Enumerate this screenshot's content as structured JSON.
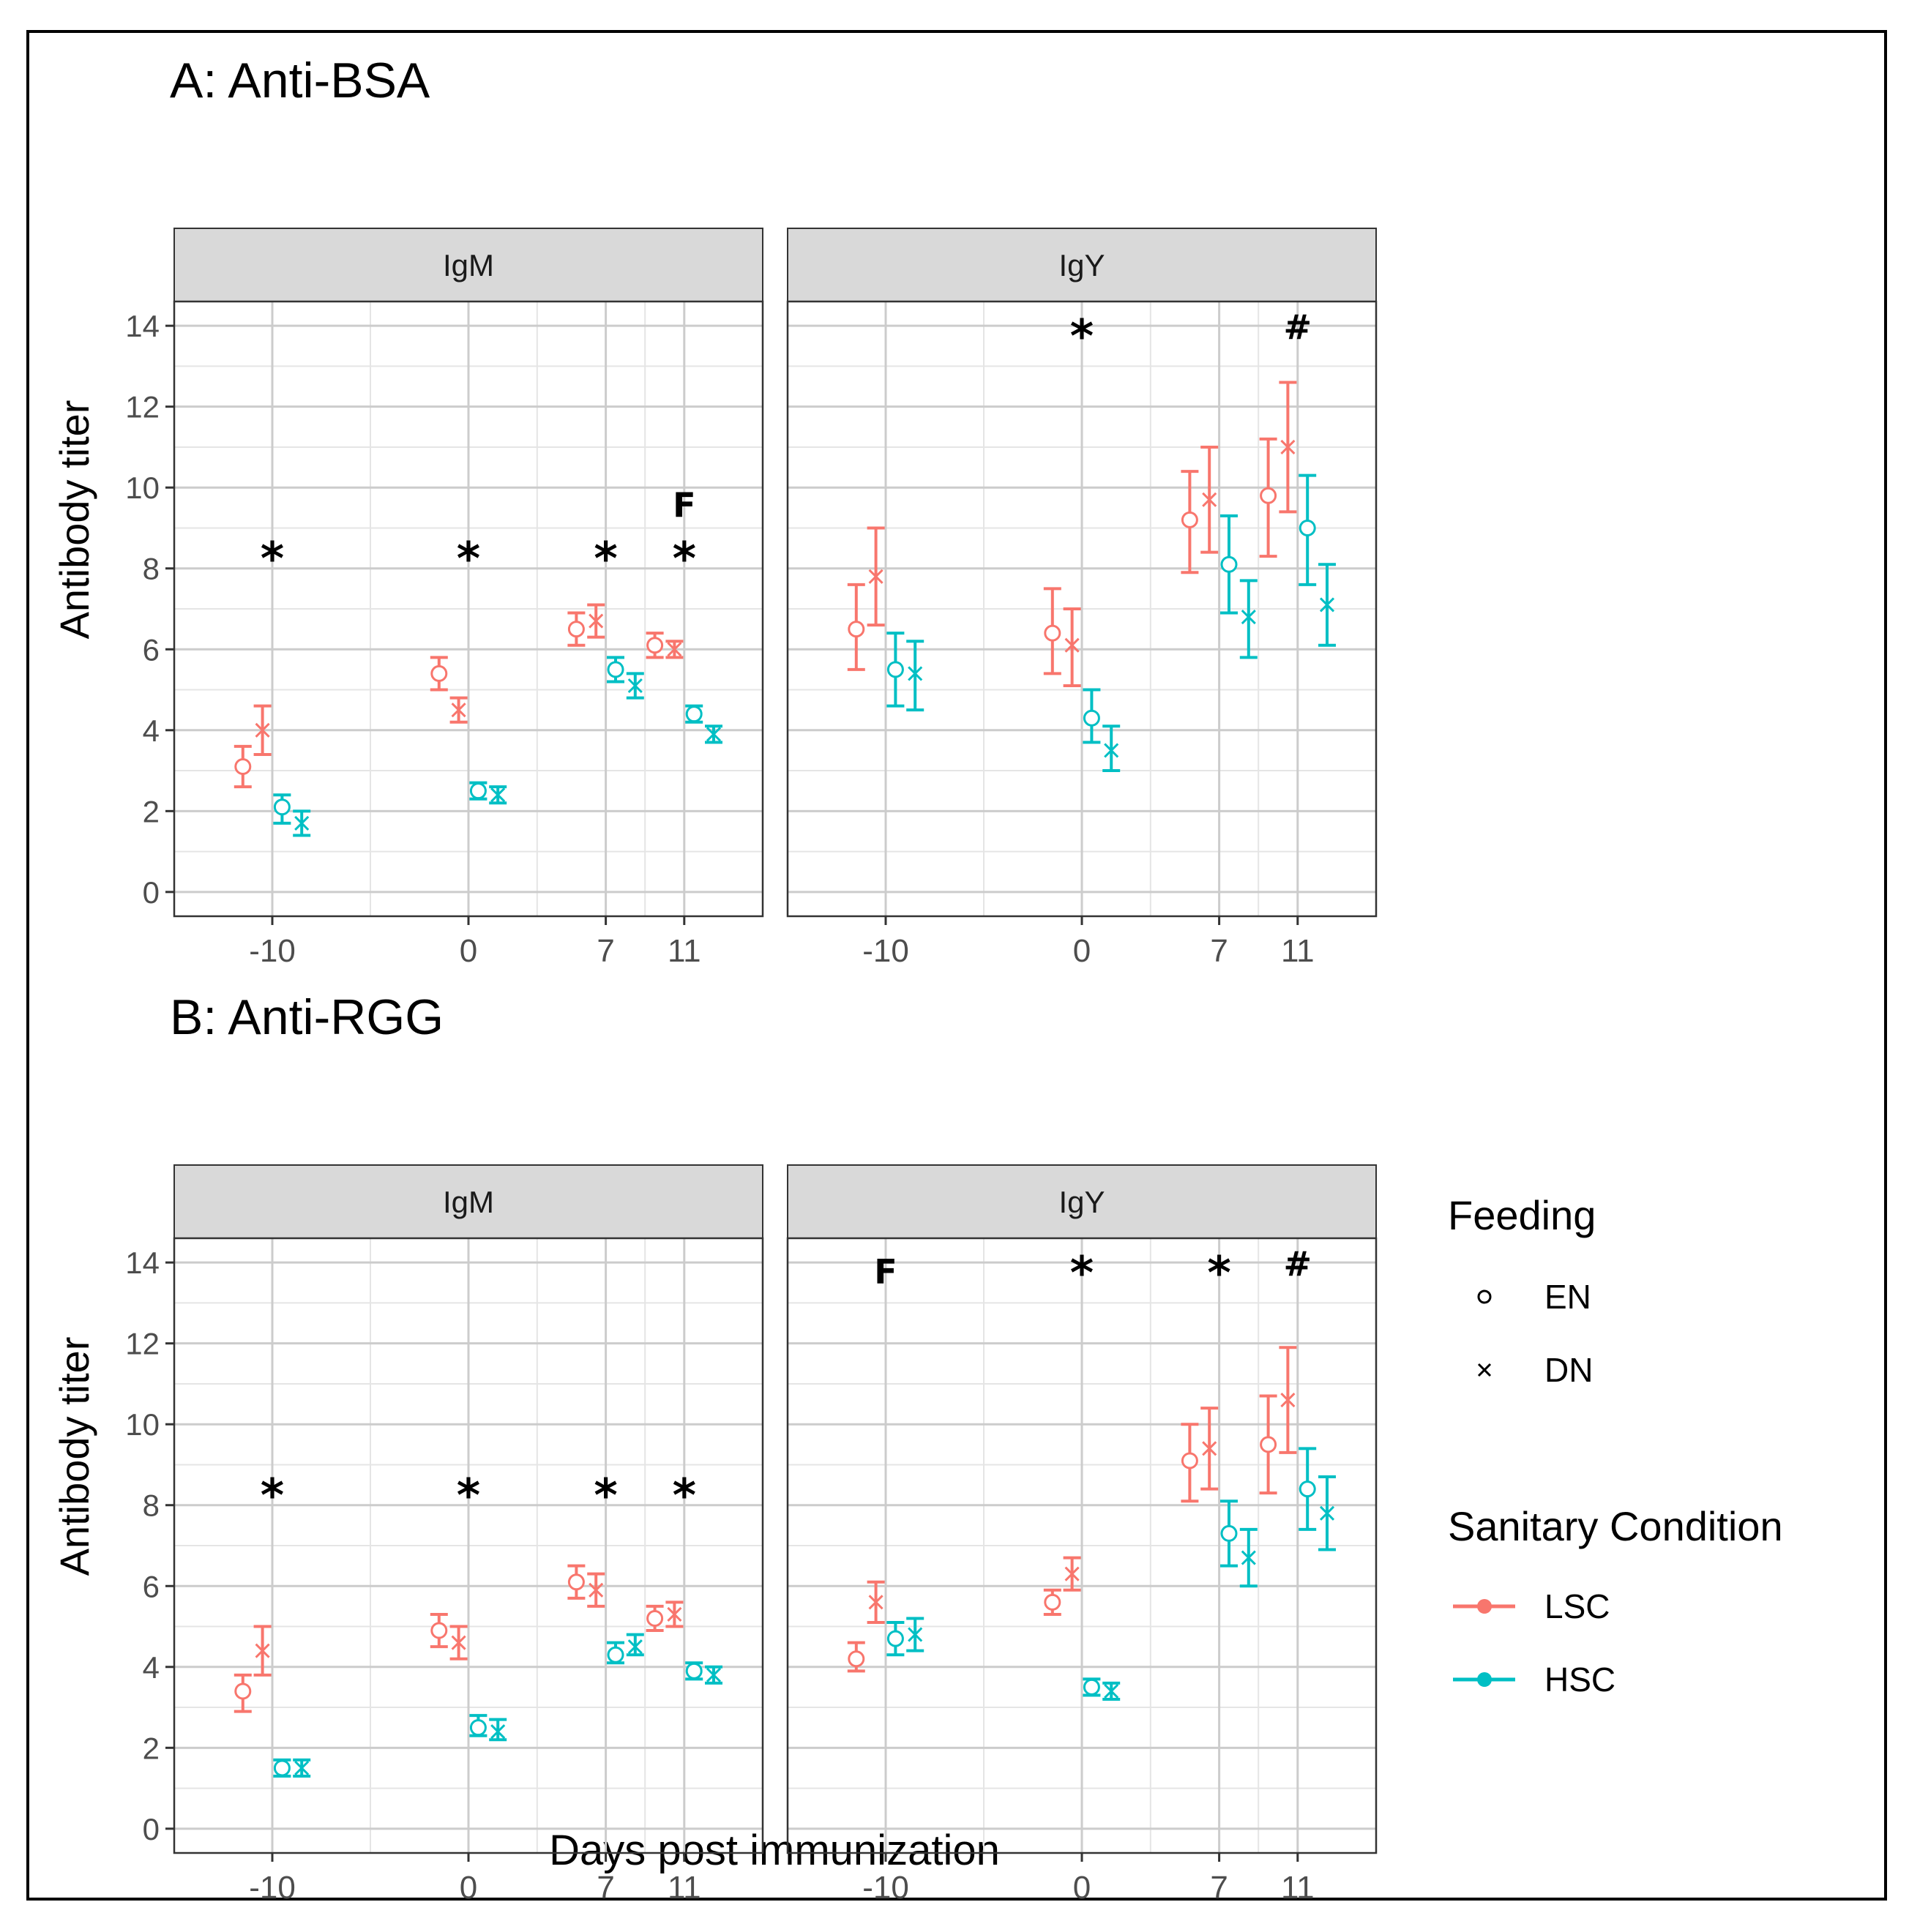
{
  "figure": {
    "shared_xlabel": "Days post immunization",
    "shared_ylabel": "Antibody titer",
    "colors": {
      "LSC": "#F8766D",
      "HSC": "#00BFC4",
      "strip_bg": "#D9D9D9",
      "grid": "#CCCCCC",
      "text": "#4D4D4D",
      "title": "#000000"
    },
    "legend": {
      "feeding_title": "Feeding",
      "feeding_items": [
        {
          "label": "EN",
          "shape": "circle"
        },
        {
          "label": "DN",
          "shape": "cross"
        }
      ],
      "sanitary_title": "Sanitary Condition",
      "sanitary_items": [
        {
          "label": "LSC",
          "color": "#F8766D"
        },
        {
          "label": "HSC",
          "color": "#00BFC4"
        }
      ]
    }
  },
  "chart_data": [
    {
      "type": "scatter",
      "title": "A: Anti-BSA",
      "xlabel": "",
      "ylabel": "Antibody titer",
      "ylim": [
        -0.6,
        14.6
      ],
      "y_ticks": [
        0,
        2,
        4,
        6,
        8,
        10,
        12,
        14
      ],
      "x_ticks": [
        -10,
        0,
        7,
        11
      ],
      "x_tick_labels": [
        "-10",
        "0",
        "7",
        "11"
      ],
      "facets": [
        {
          "strip": "IgM",
          "series": [
            {
              "name": "LSC-EN",
              "color": "LSC",
              "shape": "circle",
              "offset": -1.5,
              "points": [
                {
                  "day": -10,
                  "y": 3.1,
                  "lo": 2.6,
                  "hi": 3.6
                },
                {
                  "day": 0,
                  "y": 5.4,
                  "lo": 5.0,
                  "hi": 5.8
                },
                {
                  "day": 7,
                  "y": 6.5,
                  "lo": 6.1,
                  "hi": 6.9
                },
                {
                  "day": 11,
                  "y": 6.1,
                  "lo": 5.8,
                  "hi": 6.4
                }
              ]
            },
            {
              "name": "LSC-DN",
              "color": "LSC",
              "shape": "cross",
              "offset": -0.5,
              "points": [
                {
                  "day": -10,
                  "y": 4.0,
                  "lo": 3.4,
                  "hi": 4.6
                },
                {
                  "day": 0,
                  "y": 4.5,
                  "lo": 4.2,
                  "hi": 4.8
                },
                {
                  "day": 7,
                  "y": 6.7,
                  "lo": 6.3,
                  "hi": 7.1
                },
                {
                  "day": 11,
                  "y": 6.0,
                  "lo": 5.8,
                  "hi": 6.2
                }
              ]
            },
            {
              "name": "HSC-EN",
              "color": "HSC",
              "shape": "circle",
              "offset": 0.5,
              "points": [
                {
                  "day": -10,
                  "y": 2.1,
                  "lo": 1.7,
                  "hi": 2.4
                },
                {
                  "day": 0,
                  "y": 2.5,
                  "lo": 2.3,
                  "hi": 2.7
                },
                {
                  "day": 7,
                  "y": 5.5,
                  "lo": 5.2,
                  "hi": 5.8
                },
                {
                  "day": 11,
                  "y": 4.4,
                  "lo": 4.2,
                  "hi": 4.6
                }
              ]
            },
            {
              "name": "HSC-DN",
              "color": "HSC",
              "shape": "cross",
              "offset": 1.5,
              "points": [
                {
                  "day": -10,
                  "y": 1.7,
                  "lo": 1.4,
                  "hi": 2.0
                },
                {
                  "day": 0,
                  "y": 2.4,
                  "lo": 2.2,
                  "hi": 2.6
                },
                {
                  "day": 7,
                  "y": 5.1,
                  "lo": 4.8,
                  "hi": 5.4
                },
                {
                  "day": 11,
                  "y": 3.9,
                  "lo": 3.7,
                  "hi": 4.1
                }
              ]
            }
          ],
          "annotations": [
            {
              "day": -10,
              "y": 8.5,
              "text": "*"
            },
            {
              "day": 0,
              "y": 8.5,
              "text": "*"
            },
            {
              "day": 7,
              "y": 8.5,
              "text": "*"
            },
            {
              "day": 11,
              "y": 8.5,
              "text": "*"
            },
            {
              "day": 11,
              "y": 9.6,
              "text": "F"
            }
          ]
        },
        {
          "strip": "IgY",
          "series": [
            {
              "name": "LSC-EN",
              "color": "LSC",
              "shape": "circle",
              "offset": -1.5,
              "points": [
                {
                  "day": -10,
                  "y": 6.5,
                  "lo": 5.5,
                  "hi": 7.6
                },
                {
                  "day": 0,
                  "y": 6.4,
                  "lo": 5.4,
                  "hi": 7.5
                },
                {
                  "day": 7,
                  "y": 9.2,
                  "lo": 7.9,
                  "hi": 10.4
                },
                {
                  "day": 11,
                  "y": 9.8,
                  "lo": 8.3,
                  "hi": 11.2
                }
              ]
            },
            {
              "name": "LSC-DN",
              "color": "LSC",
              "shape": "cross",
              "offset": -0.5,
              "points": [
                {
                  "day": -10,
                  "y": 7.8,
                  "lo": 6.6,
                  "hi": 9.0
                },
                {
                  "day": 0,
                  "y": 6.1,
                  "lo": 5.1,
                  "hi": 7.0
                },
                {
                  "day": 7,
                  "y": 9.7,
                  "lo": 8.4,
                  "hi": 11.0
                },
                {
                  "day": 11,
                  "y": 11.0,
                  "lo": 9.4,
                  "hi": 12.6
                }
              ]
            },
            {
              "name": "HSC-EN",
              "color": "HSC",
              "shape": "circle",
              "offset": 0.5,
              "points": [
                {
                  "day": -10,
                  "y": 5.5,
                  "lo": 4.6,
                  "hi": 6.4
                },
                {
                  "day": 0,
                  "y": 4.3,
                  "lo": 3.7,
                  "hi": 5.0
                },
                {
                  "day": 7,
                  "y": 8.1,
                  "lo": 6.9,
                  "hi": 9.3
                },
                {
                  "day": 11,
                  "y": 9.0,
                  "lo": 7.6,
                  "hi": 10.3
                }
              ]
            },
            {
              "name": "HSC-DN",
              "color": "HSC",
              "shape": "cross",
              "offset": 1.5,
              "points": [
                {
                  "day": -10,
                  "y": 5.4,
                  "lo": 4.5,
                  "hi": 6.2
                },
                {
                  "day": 0,
                  "y": 3.5,
                  "lo": 3.0,
                  "hi": 4.1
                },
                {
                  "day": 7,
                  "y": 6.8,
                  "lo": 5.8,
                  "hi": 7.7
                },
                {
                  "day": 11,
                  "y": 7.1,
                  "lo": 6.1,
                  "hi": 8.1
                }
              ]
            }
          ],
          "annotations": [
            {
              "day": 0,
              "y": 14.0,
              "text": "*"
            },
            {
              "day": 11,
              "y": 14.0,
              "text": "#"
            }
          ]
        }
      ]
    },
    {
      "type": "scatter",
      "title": "B: Anti-RGG",
      "xlabel": "Days post immunization",
      "ylabel": "Antibody titer",
      "ylim": [
        -0.6,
        14.6
      ],
      "y_ticks": [
        0,
        2,
        4,
        6,
        8,
        10,
        12,
        14
      ],
      "x_ticks": [
        -10,
        0,
        7,
        11
      ],
      "x_tick_labels": [
        "-10",
        "0",
        "7",
        "11"
      ],
      "facets": [
        {
          "strip": "IgM",
          "series": [
            {
              "name": "LSC-EN",
              "color": "LSC",
              "shape": "circle",
              "offset": -1.5,
              "points": [
                {
                  "day": -10,
                  "y": 3.4,
                  "lo": 2.9,
                  "hi": 3.8
                },
                {
                  "day": 0,
                  "y": 4.9,
                  "lo": 4.5,
                  "hi": 5.3
                },
                {
                  "day": 7,
                  "y": 6.1,
                  "lo": 5.7,
                  "hi": 6.5
                },
                {
                  "day": 11,
                  "y": 5.2,
                  "lo": 4.9,
                  "hi": 5.5
                }
              ]
            },
            {
              "name": "LSC-DN",
              "color": "LSC",
              "shape": "cross",
              "offset": -0.5,
              "points": [
                {
                  "day": -10,
                  "y": 4.4,
                  "lo": 3.8,
                  "hi": 5.0
                },
                {
                  "day": 0,
                  "y": 4.6,
                  "lo": 4.2,
                  "hi": 5.0
                },
                {
                  "day": 7,
                  "y": 5.9,
                  "lo": 5.5,
                  "hi": 6.3
                },
                {
                  "day": 11,
                  "y": 5.3,
                  "lo": 5.0,
                  "hi": 5.6
                }
              ]
            },
            {
              "name": "HSC-EN",
              "color": "HSC",
              "shape": "circle",
              "offset": 0.5,
              "points": [
                {
                  "day": -10,
                  "y": 1.5,
                  "lo": 1.3,
                  "hi": 1.7
                },
                {
                  "day": 0,
                  "y": 2.5,
                  "lo": 2.3,
                  "hi": 2.8
                },
                {
                  "day": 7,
                  "y": 4.3,
                  "lo": 4.1,
                  "hi": 4.6
                },
                {
                  "day": 11,
                  "y": 3.9,
                  "lo": 3.7,
                  "hi": 4.1
                }
              ]
            },
            {
              "name": "HSC-DN",
              "color": "HSC",
              "shape": "cross",
              "offset": 1.5,
              "points": [
                {
                  "day": -10,
                  "y": 1.5,
                  "lo": 1.3,
                  "hi": 1.7
                },
                {
                  "day": 0,
                  "y": 2.4,
                  "lo": 2.2,
                  "hi": 2.7
                },
                {
                  "day": 7,
                  "y": 4.5,
                  "lo": 4.3,
                  "hi": 4.8
                },
                {
                  "day": 11,
                  "y": 3.8,
                  "lo": 3.6,
                  "hi": 4.0
                }
              ]
            }
          ],
          "annotations": [
            {
              "day": -10,
              "y": 8.5,
              "text": "*"
            },
            {
              "day": 0,
              "y": 8.5,
              "text": "*"
            },
            {
              "day": 7,
              "y": 8.5,
              "text": "*"
            },
            {
              "day": 11,
              "y": 8.5,
              "text": "*"
            }
          ]
        },
        {
          "strip": "IgY",
          "series": [
            {
              "name": "LSC-EN",
              "color": "LSC",
              "shape": "circle",
              "offset": -1.5,
              "points": [
                {
                  "day": -10,
                  "y": 4.2,
                  "lo": 3.9,
                  "hi": 4.6
                },
                {
                  "day": 0,
                  "y": 5.6,
                  "lo": 5.3,
                  "hi": 5.9
                },
                {
                  "day": 7,
                  "y": 9.1,
                  "lo": 8.1,
                  "hi": 10.0
                },
                {
                  "day": 11,
                  "y": 9.5,
                  "lo": 8.3,
                  "hi": 10.7
                }
              ]
            },
            {
              "name": "LSC-DN",
              "color": "LSC",
              "shape": "cross",
              "offset": -0.5,
              "points": [
                {
                  "day": -10,
                  "y": 5.6,
                  "lo": 5.1,
                  "hi": 6.1
                },
                {
                  "day": 0,
                  "y": 6.3,
                  "lo": 5.9,
                  "hi": 6.7
                },
                {
                  "day": 7,
                  "y": 9.4,
                  "lo": 8.4,
                  "hi": 10.4
                },
                {
                  "day": 11,
                  "y": 10.6,
                  "lo": 9.3,
                  "hi": 11.9
                }
              ]
            },
            {
              "name": "HSC-EN",
              "color": "HSC",
              "shape": "circle",
              "offset": 0.5,
              "points": [
                {
                  "day": -10,
                  "y": 4.7,
                  "lo": 4.3,
                  "hi": 5.1
                },
                {
                  "day": 0,
                  "y": 3.5,
                  "lo": 3.3,
                  "hi": 3.7
                },
                {
                  "day": 7,
                  "y": 7.3,
                  "lo": 6.5,
                  "hi": 8.1
                },
                {
                  "day": 11,
                  "y": 8.4,
                  "lo": 7.4,
                  "hi": 9.4
                }
              ]
            },
            {
              "name": "HSC-DN",
              "color": "HSC",
              "shape": "cross",
              "offset": 1.5,
              "points": [
                {
                  "day": -10,
                  "y": 4.8,
                  "lo": 4.4,
                  "hi": 5.2
                },
                {
                  "day": 0,
                  "y": 3.4,
                  "lo": 3.2,
                  "hi": 3.6
                },
                {
                  "day": 7,
                  "y": 6.7,
                  "lo": 6.0,
                  "hi": 7.4
                },
                {
                  "day": 11,
                  "y": 7.8,
                  "lo": 6.9,
                  "hi": 8.7
                }
              ]
            }
          ],
          "annotations": [
            {
              "day": -10,
              "y": 13.8,
              "text": "F"
            },
            {
              "day": 0,
              "y": 14.0,
              "text": "*"
            },
            {
              "day": 7,
              "y": 14.0,
              "text": "*"
            },
            {
              "day": 11,
              "y": 14.0,
              "text": "#"
            }
          ]
        }
      ]
    }
  ]
}
